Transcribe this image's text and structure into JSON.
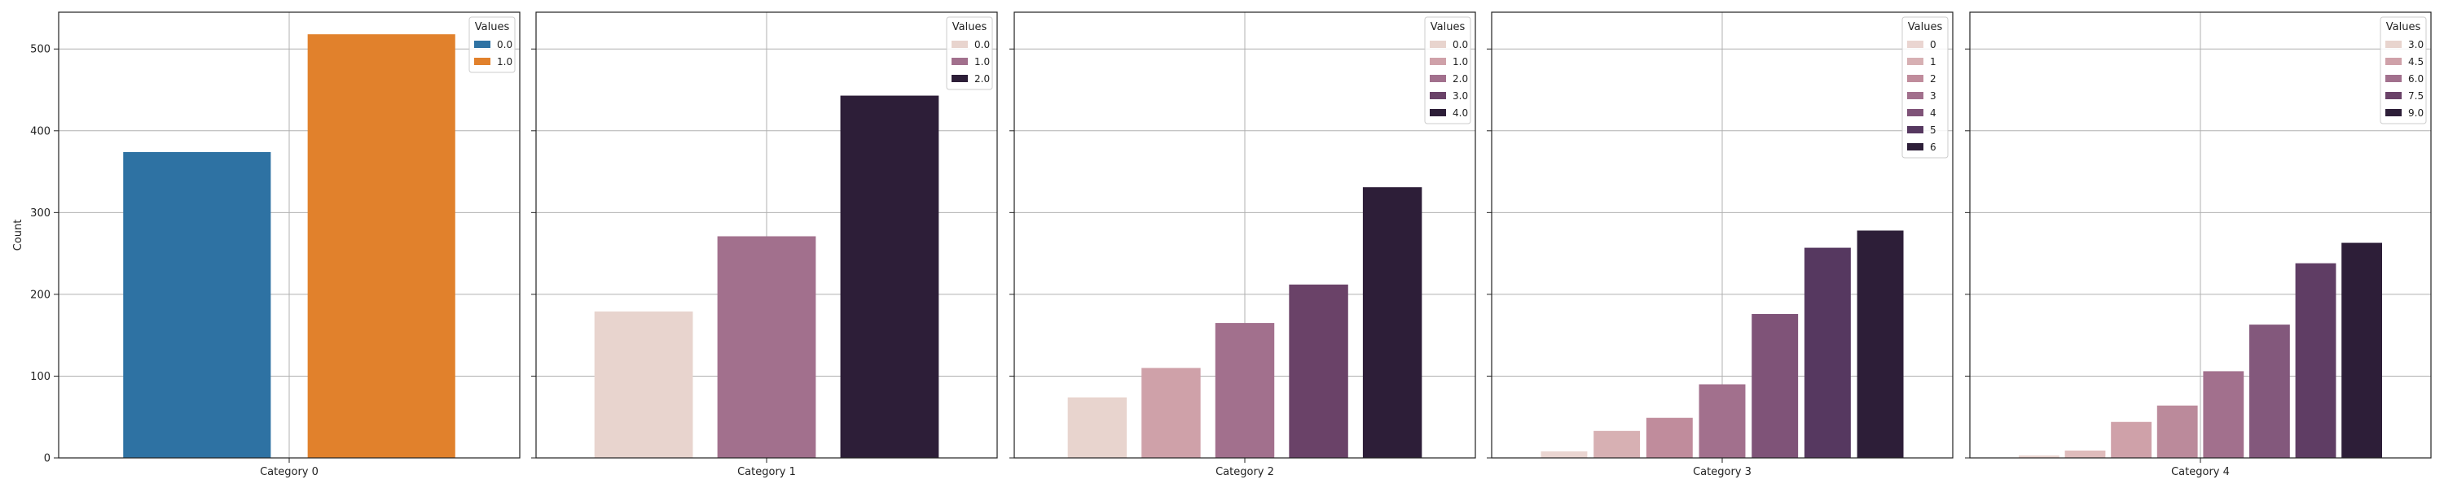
{
  "chart_data": [
    {
      "type": "bar",
      "xlabel": "Category 0",
      "ylabel": "Count",
      "ylim": [
        0,
        545
      ],
      "yticks": [
        0,
        100,
        200,
        300,
        400,
        500
      ],
      "grid": true,
      "legend": {
        "title": "Values",
        "placement": "top-right"
      },
      "series": [
        {
          "name": "0.0",
          "value": 374,
          "color": "#2e72a3"
        },
        {
          "name": "1.0",
          "value": 518,
          "color": "#e1812c"
        }
      ]
    },
    {
      "type": "bar",
      "xlabel": "Category 1",
      "ylim": [
        0,
        545
      ],
      "grid": true,
      "legend": {
        "title": "Values",
        "placement": "top-right"
      },
      "series": [
        {
          "name": "0.0",
          "value": 179,
          "color": "#e8d4ce"
        },
        {
          "name": "1.0",
          "value": 271,
          "color": "#a2708d"
        },
        {
          "name": "2.0",
          "value": 443,
          "color": "#2d1e38"
        }
      ]
    },
    {
      "type": "bar",
      "xlabel": "Category 2",
      "ylim": [
        0,
        545
      ],
      "grid": true,
      "legend": {
        "title": "Values",
        "placement": "top-right"
      },
      "series": [
        {
          "name": "0.0",
          "value": 74,
          "color": "#e8d4ce"
        },
        {
          "name": "1.0",
          "value": 110,
          "color": "#cfa1a9"
        },
        {
          "name": "2.0",
          "value": 165,
          "color": "#a2708d"
        },
        {
          "name": "3.0",
          "value": 212,
          "color": "#6a4268"
        },
        {
          "name": "4.0",
          "value": 331,
          "color": "#2d1e38"
        }
      ]
    },
    {
      "type": "bar",
      "xlabel": "Category 3",
      "ylim": [
        0,
        545
      ],
      "grid": true,
      "legend": {
        "title": "Values",
        "placement": "top-right"
      },
      "series": [
        {
          "name": "0",
          "value": 8,
          "color": "#ead5d1"
        },
        {
          "name": "1",
          "value": 33,
          "color": "#d7b0b3"
        },
        {
          "name": "2",
          "value": 49,
          "color": "#c08c9c"
        },
        {
          "name": "3",
          "value": 90,
          "color": "#a2708d"
        },
        {
          "name": "4",
          "value": 176,
          "color": "#7f5378"
        },
        {
          "name": "5",
          "value": 257,
          "color": "#563860"
        },
        {
          "name": "6",
          "value": 278,
          "color": "#2d1e38"
        }
      ]
    },
    {
      "type": "bar",
      "xlabel": "Category 4",
      "ylim": [
        0,
        545
      ],
      "grid": true,
      "legend": {
        "title": "Values",
        "placement": "top-right"
      },
      "legend_entries": [
        {
          "name": "3.0",
          "color": "#e8d4ce"
        },
        {
          "name": "4.5",
          "color": "#cfa1a9"
        },
        {
          "name": "6.0",
          "color": "#a2708d"
        },
        {
          "name": "7.5",
          "color": "#6a4268"
        },
        {
          "name": "9.0",
          "color": "#2d1e38"
        }
      ],
      "bars": [
        {
          "value": 3,
          "color": "#ead5d1"
        },
        {
          "value": 9,
          "color": "#dfbcbc"
        },
        {
          "value": 44,
          "color": "#cfa1a9"
        },
        {
          "value": 64,
          "color": "#bb8a9b"
        },
        {
          "value": 106,
          "color": "#a2708d"
        },
        {
          "value": 163,
          "color": "#83587c"
        },
        {
          "value": 238,
          "color": "#5f3d64"
        },
        {
          "value": 263,
          "color": "#2d1e38"
        }
      ]
    }
  ]
}
